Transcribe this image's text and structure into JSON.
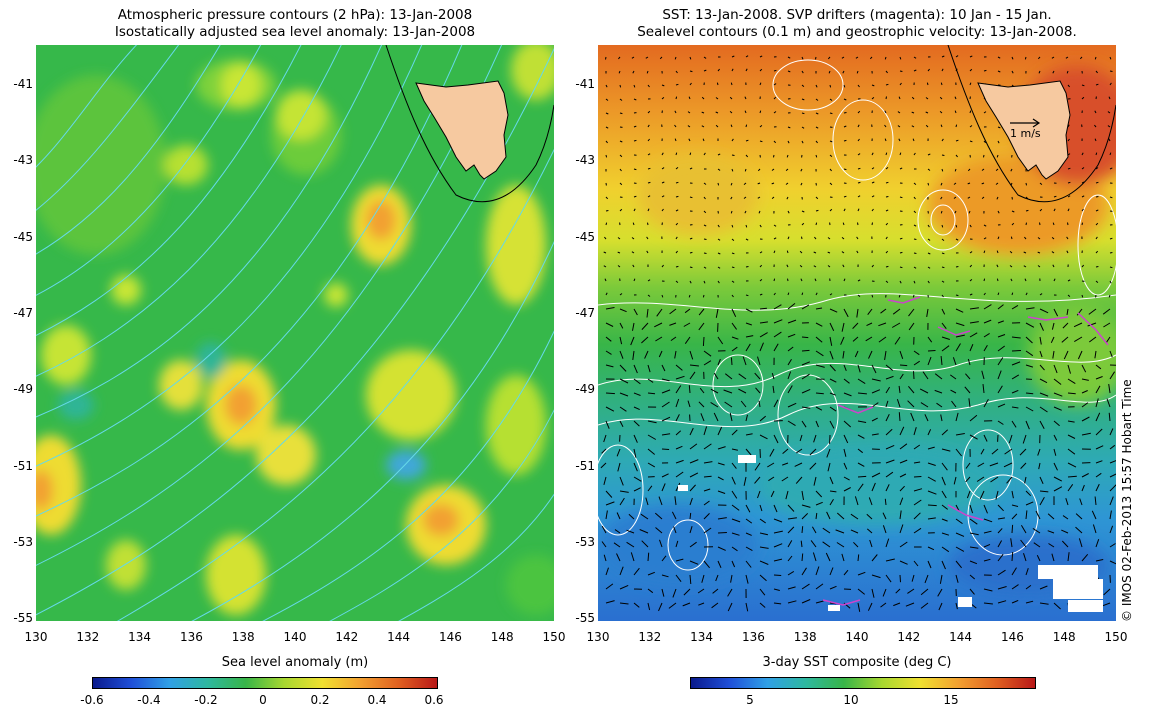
{
  "left_panel": {
    "title_line1": "Atmospheric pressure contours (2 hPa): 13-Jan-2008",
    "title_line2": "Isostatically adjusted sea level anomaly: 13-Jan-2008",
    "colorbar_label": "Sea level anomaly (m)",
    "colorbar_ticks": [
      "-0.6",
      "-0.4",
      "-0.2",
      "0",
      "0.2",
      "0.4",
      "0.6"
    ]
  },
  "right_panel": {
    "title_line1": "SST: 13-Jan-2008. SVP drifters (magenta): 10 Jan - 15 Jan.",
    "title_line2": "Sealevel contours (0.1 m) and geostrophic velocity: 13-Jan-2008.",
    "colorbar_label": "3-day SST composite (deg C)",
    "colorbar_ticks": [
      "5",
      "10",
      "15"
    ],
    "velocity_scale_label": "1 m/s"
  },
  "axes": {
    "lat_ticks": [
      "-41",
      "-43",
      "-45",
      "-47",
      "-49",
      "-51",
      "-53",
      "-55"
    ],
    "lon_ticks": [
      "130",
      "132",
      "134",
      "136",
      "138",
      "140",
      "142",
      "144",
      "146",
      "148",
      "150"
    ],
    "lat_range": [
      -55,
      -40.2
    ],
    "lon_range": [
      130,
      150
    ]
  },
  "credit": "© IMOS 02-Feb-2013 15:57 Hobart Time",
  "colors": {
    "land": "#f6c9a0",
    "pressure_contour": "#66d9e8",
    "sea_contour": "#ffffff",
    "drifter": "#cc44cc"
  }
}
